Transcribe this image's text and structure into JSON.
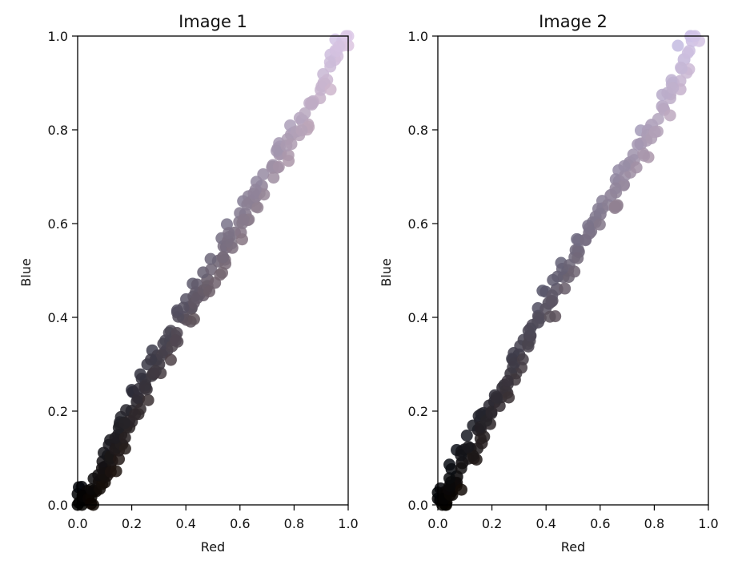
{
  "chart_data": [
    {
      "type": "scatter",
      "title": "Image 1",
      "xlabel": "Red",
      "ylabel": "Blue",
      "xlim": [
        0,
        1
      ],
      "ylim": [
        0,
        1
      ],
      "xticks": [
        "0.0",
        "0.2",
        "0.4",
        "0.6",
        "0.8",
        "1.0"
      ],
      "yticks": [
        "0.0",
        "0.2",
        "0.4",
        "0.6",
        "0.8",
        "1.0"
      ],
      "clusters": [
        {
          "name": "",
          "color_note": "pixel color",
          "points": [
            [
              0.02,
              0.01
            ],
            [
              0.04,
              0.02
            ],
            [
              0.06,
              0.03
            ],
            [
              0.08,
              0.05
            ],
            [
              0.1,
              0.08
            ],
            [
              0.12,
              0.1
            ],
            [
              0.14,
              0.12
            ],
            [
              0.16,
              0.15
            ],
            [
              0.18,
              0.17
            ],
            [
              0.2,
              0.2
            ],
            [
              0.22,
              0.22
            ],
            [
              0.25,
              0.25
            ],
            [
              0.28,
              0.28
            ],
            [
              0.3,
              0.3
            ],
            [
              0.33,
              0.33
            ],
            [
              0.36,
              0.36
            ],
            [
              0.39,
              0.4
            ],
            [
              0.42,
              0.42
            ],
            [
              0.45,
              0.45
            ],
            [
              0.48,
              0.48
            ],
            [
              0.52,
              0.52
            ],
            [
              0.55,
              0.55
            ],
            [
              0.58,
              0.58
            ],
            [
              0.62,
              0.62
            ],
            [
              0.65,
              0.65
            ],
            [
              0.68,
              0.68
            ],
            [
              0.72,
              0.72
            ],
            [
              0.75,
              0.75
            ],
            [
              0.79,
              0.79
            ],
            [
              0.83,
              0.82
            ],
            [
              0.87,
              0.86
            ],
            [
              0.91,
              0.9
            ],
            [
              0.95,
              0.95
            ],
            [
              0.98,
              0.99
            ]
          ]
        }
      ]
    },
    {
      "type": "scatter",
      "title": "Image 2",
      "xlabel": "Red",
      "ylabel": "Blue",
      "xlim": [
        0,
        1
      ],
      "ylim": [
        0,
        1
      ],
      "xticks": [
        "0.0",
        "0.2",
        "0.4",
        "0.6",
        "0.8",
        "1.0"
      ],
      "yticks": [
        "0.0",
        "0.2",
        "0.4",
        "0.6",
        "0.8",
        "1.0"
      ],
      "clusters": [
        {
          "name": "",
          "color_note": "pixel color",
          "points": [
            [
              0.01,
              0.01
            ],
            [
              0.03,
              0.02
            ],
            [
              0.05,
              0.04
            ],
            [
              0.07,
              0.06
            ],
            [
              0.09,
              0.09
            ],
            [
              0.12,
              0.12
            ],
            [
              0.15,
              0.16
            ],
            [
              0.18,
              0.19
            ],
            [
              0.21,
              0.22
            ],
            [
              0.24,
              0.25
            ],
            [
              0.27,
              0.28
            ],
            [
              0.3,
              0.32
            ],
            [
              0.34,
              0.36
            ],
            [
              0.37,
              0.39
            ],
            [
              0.41,
              0.43
            ],
            [
              0.44,
              0.46
            ],
            [
              0.48,
              0.5
            ],
            [
              0.52,
              0.54
            ],
            [
              0.56,
              0.58
            ],
            [
              0.6,
              0.62
            ],
            [
              0.64,
              0.66
            ],
            [
              0.67,
              0.69
            ],
            [
              0.71,
              0.73
            ],
            [
              0.75,
              0.77
            ],
            [
              0.79,
              0.81
            ],
            [
              0.83,
              0.85
            ],
            [
              0.87,
              0.9
            ],
            [
              0.91,
              0.95
            ],
            [
              0.94,
              0.99
            ]
          ]
        }
      ]
    }
  ]
}
